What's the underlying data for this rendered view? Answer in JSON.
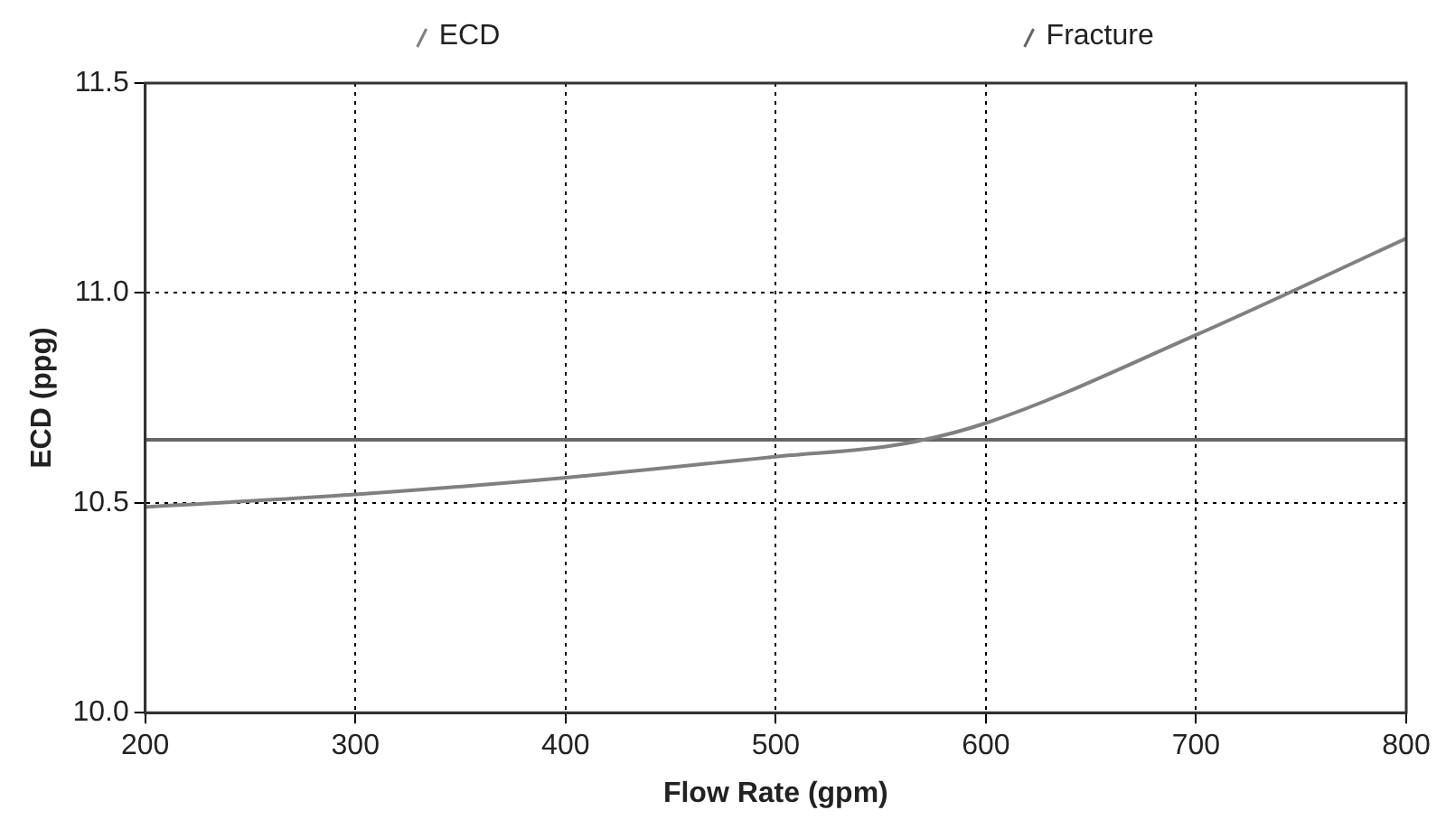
{
  "chart_data": {
    "type": "line",
    "xlabel": "Flow Rate (gpm)",
    "ylabel": "ECD (ppg)",
    "series": [
      {
        "name": "ECD",
        "color": "#808080",
        "x": [
          200,
          300,
          400,
          500,
          560,
          600,
          700,
          800
        ],
        "values": [
          10.49,
          10.52,
          10.56,
          10.61,
          10.64,
          10.69,
          10.9,
          11.13
        ]
      },
      {
        "name": "Fracture",
        "color": "#666666",
        "x": [
          200,
          800
        ],
        "values": [
          10.65,
          10.65
        ]
      }
    ],
    "xlim": [
      200,
      800
    ],
    "xticks": [
      200,
      300,
      400,
      500,
      600,
      700,
      800
    ],
    "ylim": [
      10.0,
      11.5
    ],
    "yticks": [
      {
        "value": 10.0,
        "label": "10.0"
      },
      {
        "value": 10.5,
        "label": "10.5"
      },
      {
        "value": 11.0,
        "label": "11.0"
      },
      {
        "value": 11.5,
        "label": "11.5"
      }
    ],
    "grid": true,
    "legend": "top",
    "marker": "none",
    "line_style": "solid"
  }
}
